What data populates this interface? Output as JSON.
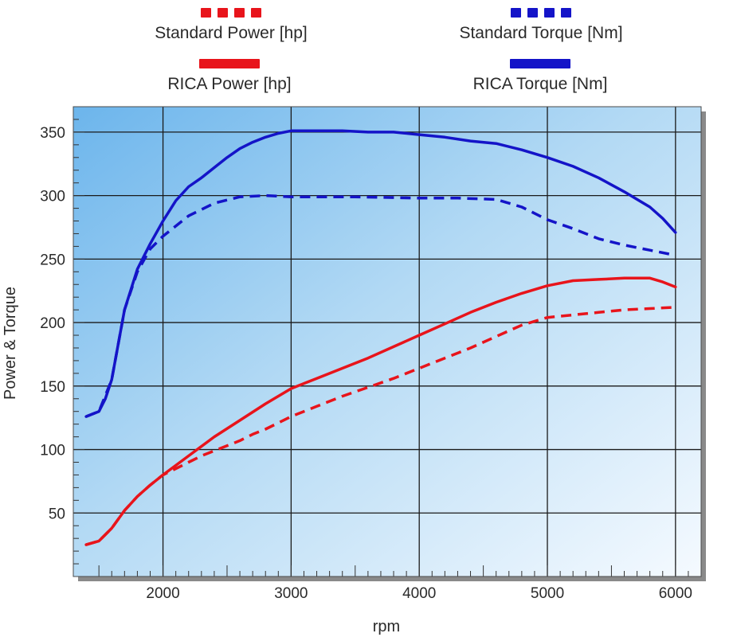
{
  "chart_data": {
    "type": "line",
    "xlabel": "rpm",
    "ylabel": "Power & Torque",
    "xlim": [
      1300,
      6200
    ],
    "ylim": [
      0,
      370
    ],
    "x_ticks": [
      2000,
      3000,
      4000,
      5000,
      6000
    ],
    "y_ticks": [
      50,
      100,
      150,
      200,
      250,
      300,
      350
    ],
    "x_tick_labels": [
      "2000",
      "3000",
      "4000",
      "5000",
      "6000"
    ],
    "y_tick_labels": [
      "50",
      "100",
      "150",
      "200",
      "250",
      "300",
      "350"
    ],
    "grid": true,
    "legend_position": "top",
    "series": [
      {
        "name": "Standard Power [hp]",
        "color": "#e8141b",
        "style": "dashed",
        "points": [
          [
            1400,
            25
          ],
          [
            1500,
            28
          ],
          [
            1600,
            38
          ],
          [
            1700,
            52
          ],
          [
            1800,
            63
          ],
          [
            1900,
            72
          ],
          [
            2000,
            80
          ],
          [
            2100,
            85
          ],
          [
            2200,
            90
          ],
          [
            2300,
            95
          ],
          [
            2400,
            99
          ],
          [
            2500,
            103
          ],
          [
            2600,
            107
          ],
          [
            2700,
            112
          ],
          [
            2800,
            116
          ],
          [
            2900,
            121
          ],
          [
            3000,
            126
          ],
          [
            3200,
            134
          ],
          [
            3400,
            142
          ],
          [
            3600,
            149
          ],
          [
            3800,
            156
          ],
          [
            4000,
            164
          ],
          [
            4200,
            172
          ],
          [
            4400,
            180
          ],
          [
            4600,
            189
          ],
          [
            4800,
            198
          ],
          [
            5000,
            204
          ],
          [
            5200,
            206
          ],
          [
            5400,
            208
          ],
          [
            5600,
            210
          ],
          [
            5800,
            211
          ],
          [
            6000,
            212
          ]
        ]
      },
      {
        "name": "Standard Torque [Nm]",
        "color": "#1414c8",
        "style": "dashed",
        "points": [
          [
            1400,
            126
          ],
          [
            1500,
            130
          ],
          [
            1600,
            155
          ],
          [
            1700,
            210
          ],
          [
            1800,
            240
          ],
          [
            1900,
            258
          ],
          [
            2000,
            268
          ],
          [
            2200,
            284
          ],
          [
            2400,
            294
          ],
          [
            2600,
            299
          ],
          [
            2800,
            300
          ],
          [
            3000,
            299
          ],
          [
            3500,
            299
          ],
          [
            4000,
            298
          ],
          [
            4300,
            298
          ],
          [
            4600,
            297
          ],
          [
            4800,
            291
          ],
          [
            5000,
            281
          ],
          [
            5200,
            274
          ],
          [
            5400,
            266
          ],
          [
            5600,
            261
          ],
          [
            5800,
            257
          ],
          [
            5950,
            254
          ]
        ]
      },
      {
        "name": "RICA Power [hp]",
        "color": "#e8141b",
        "style": "solid",
        "points": [
          [
            1400,
            25
          ],
          [
            1500,
            28
          ],
          [
            1600,
            38
          ],
          [
            1700,
            52
          ],
          [
            1800,
            63
          ],
          [
            1900,
            72
          ],
          [
            2000,
            80
          ],
          [
            2200,
            95
          ],
          [
            2400,
            110
          ],
          [
            2600,
            123
          ],
          [
            2800,
            136
          ],
          [
            3000,
            148
          ],
          [
            3200,
            156
          ],
          [
            3400,
            164
          ],
          [
            3600,
            172
          ],
          [
            3800,
            181
          ],
          [
            4000,
            190
          ],
          [
            4200,
            199
          ],
          [
            4400,
            208
          ],
          [
            4600,
            216
          ],
          [
            4800,
            223
          ],
          [
            5000,
            229
          ],
          [
            5200,
            233
          ],
          [
            5400,
            234
          ],
          [
            5600,
            235
          ],
          [
            5800,
            235
          ],
          [
            5900,
            232
          ],
          [
            6000,
            228
          ]
        ]
      },
      {
        "name": "RICA Torque [Nm]",
        "color": "#1414c8",
        "style": "solid",
        "points": [
          [
            1400,
            126
          ],
          [
            1500,
            130
          ],
          [
            1550,
            140
          ],
          [
            1600,
            155
          ],
          [
            1700,
            210
          ],
          [
            1800,
            242
          ],
          [
            1900,
            262
          ],
          [
            2000,
            280
          ],
          [
            2100,
            296
          ],
          [
            2200,
            307
          ],
          [
            2300,
            314
          ],
          [
            2400,
            322
          ],
          [
            2500,
            330
          ],
          [
            2600,
            337
          ],
          [
            2700,
            342
          ],
          [
            2800,
            346
          ],
          [
            2900,
            349
          ],
          [
            3000,
            351
          ],
          [
            3200,
            351
          ],
          [
            3400,
            351
          ],
          [
            3600,
            350
          ],
          [
            3800,
            350
          ],
          [
            4000,
            348
          ],
          [
            4200,
            346
          ],
          [
            4400,
            343
          ],
          [
            4600,
            341
          ],
          [
            4800,
            336
          ],
          [
            5000,
            330
          ],
          [
            5200,
            323
          ],
          [
            5400,
            314
          ],
          [
            5600,
            303
          ],
          [
            5800,
            291
          ],
          [
            5900,
            282
          ],
          [
            6000,
            271
          ]
        ]
      }
    ]
  }
}
